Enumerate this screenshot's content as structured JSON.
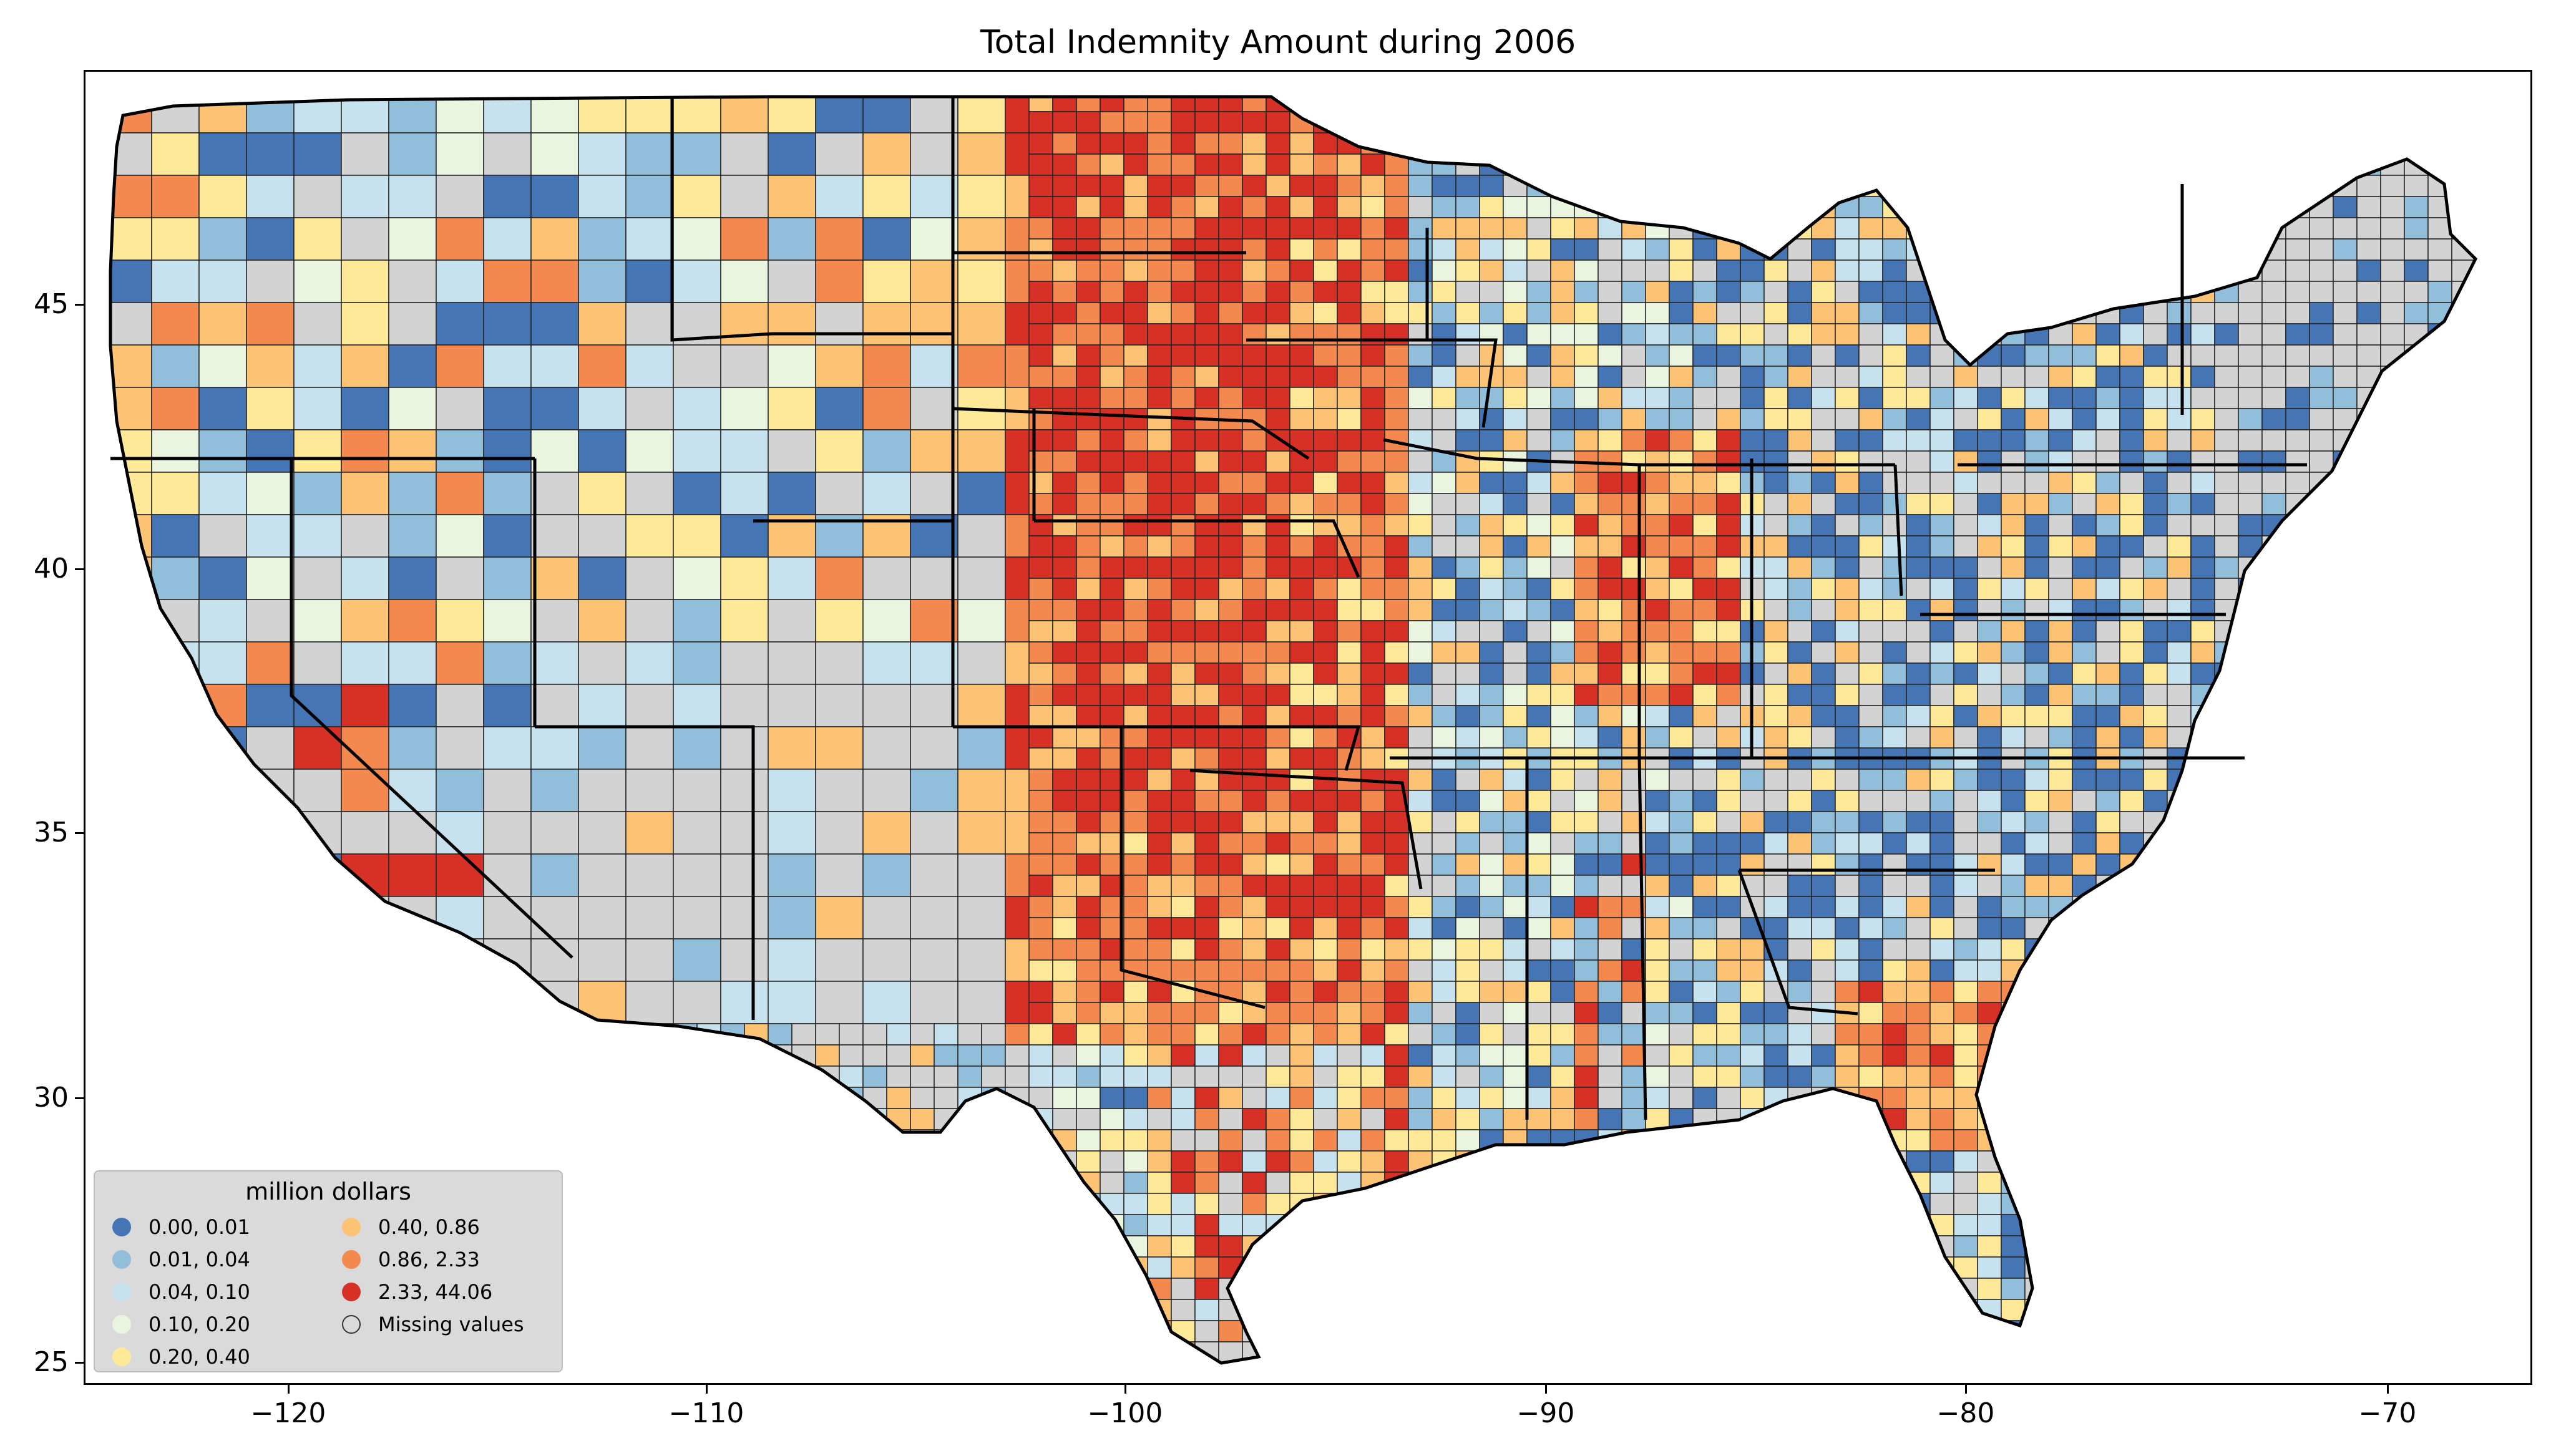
{
  "title": "Total Indemnity Amount during 2006",
  "axes": {
    "x_ticks": [
      "−120",
      "−110",
      "−100",
      "−90",
      "−80",
      "−70"
    ],
    "y_ticks": [
      "45",
      "40",
      "35",
      "30",
      "25"
    ],
    "x_range": [
      -124.8,
      -66.3
    ],
    "y_range": [
      24.5,
      49.5
    ]
  },
  "legend": {
    "title": "million dollars",
    "items": [
      {
        "label": "0.00,  0.01",
        "color": "#4575b4"
      },
      {
        "label": "0.01,  0.04",
        "color": "#91bfdb"
      },
      {
        "label": "0.04,  0.10",
        "color": "#c6e2ef"
      },
      {
        "label": "0.10,  0.20",
        "color": "#eaf5e0"
      },
      {
        "label": "0.20,  0.40",
        "color": "#fee999"
      },
      {
        "label": "0.40,  0.86",
        "color": "#fdc374"
      },
      {
        "label": "0.86,  2.33",
        "color": "#f4894f"
      },
      {
        "label": "2.33, 44.06",
        "color": "#d73027"
      },
      {
        "label": "Missing values",
        "color": "#d3d3d3"
      }
    ]
  },
  "colors": {
    "missing": "#d3d3d3",
    "state_border": "#000000",
    "county_border": "#222222"
  }
}
